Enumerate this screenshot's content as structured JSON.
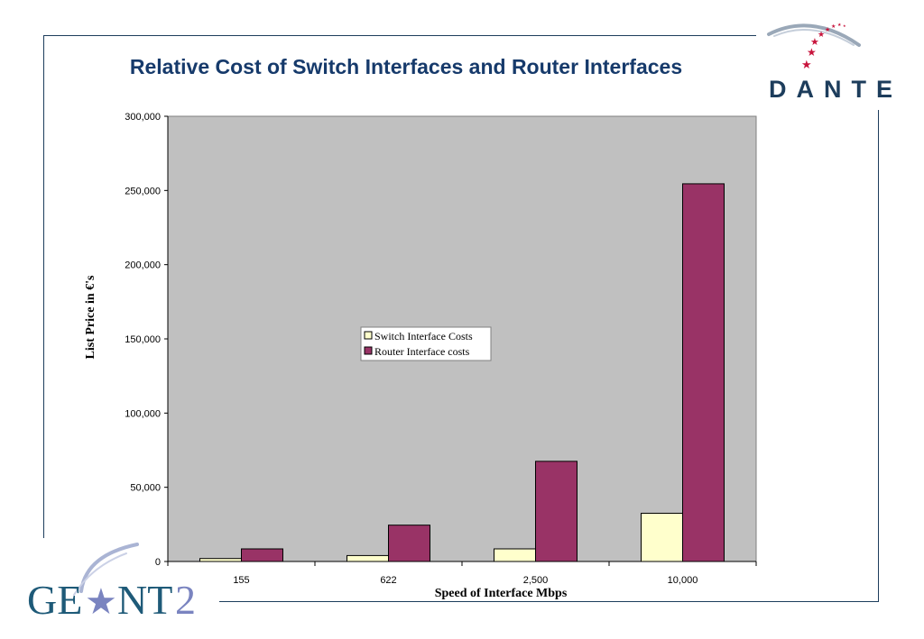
{
  "slide": {
    "logos": {
      "top_right": "DANTE",
      "bottom_left": "GEANT2"
    }
  },
  "colors": {
    "title": "#163a6b",
    "plot_background": "#c0c0c0",
    "switch": "#ffffcc",
    "router": "#993366",
    "frame": "#1d3d5c"
  },
  "chart_data": {
    "type": "bar",
    "title": "Relative Cost of Switch Interfaces and Router Interfaces",
    "xlabel": "Speed of Interface Mbps",
    "ylabel": "List Price in €'s",
    "categories": [
      "155",
      "622",
      "2,500",
      "10,000"
    ],
    "series": [
      {
        "name": "Switch Interface Costs",
        "values": [
          2000,
          4000,
          8500,
          32500
        ],
        "color": "#ffffcc"
      },
      {
        "name": "Router Interface costs",
        "values": [
          8500,
          24500,
          67500,
          254500
        ],
        "color": "#993366"
      }
    ],
    "ylim": [
      0,
      300000
    ],
    "yticks": [
      "0",
      "50,000",
      "100,000",
      "150,000",
      "200,000",
      "250,000",
      "300,000"
    ],
    "grid": false,
    "legend": "center"
  }
}
